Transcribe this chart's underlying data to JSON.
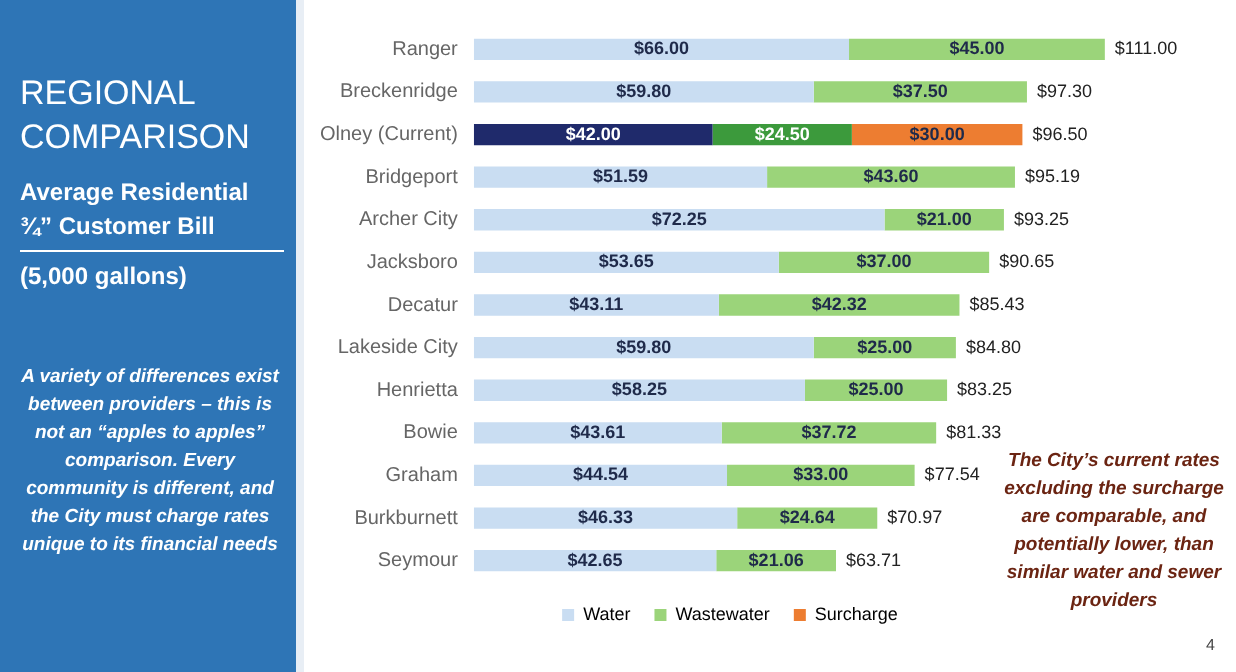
{
  "chart_data": {
    "type": "bar",
    "orientation": "horizontal",
    "stacked": true,
    "title": "REGIONAL COMPARISON",
    "subtitle": "Average Residential ¾” Customer Bill",
    "categories": [
      "Ranger",
      "Breckenridge",
      "Olney (Current)",
      "Bridgeport",
      "Archer City",
      "Jacksboro",
      "Decatur",
      "Lakeside City",
      "Henrietta",
      "Bowie",
      "Graham",
      "Burkburnett",
      "Seymour"
    ],
    "series": [
      {
        "name": "Water",
        "color": "#c9ddf2",
        "colors": [
          "#c9ddf2",
          "#c9ddf2",
          "#1f2a6b",
          "#c9ddf2",
          "#c9ddf2",
          "#c9ddf2",
          "#c9ddf2",
          "#c9ddf2",
          "#c9ddf2",
          "#c9ddf2",
          "#c9ddf2",
          "#c9ddf2",
          "#c9ddf2"
        ],
        "values": [
          66,
          59.8,
          42,
          51.59,
          72.25,
          53.65,
          43.11,
          59.8,
          58.25,
          43.61,
          44.54,
          46.33,
          42.65
        ],
        "value_labels": [
          "$66.00",
          "$59.80",
          "$42.00",
          "$51.59",
          "$72.25",
          "$53.65",
          "$43.11",
          "$59.80",
          "$58.25",
          "$43.61",
          "$44.54",
          "$46.33",
          "$42.65"
        ]
      },
      {
        "name": "Wastewater",
        "color": "#9bd47a",
        "colors": [
          "#9bd47a",
          "#9bd47a",
          "#3c9a3c",
          "#9bd47a",
          "#9bd47a",
          "#9bd47a",
          "#9bd47a",
          "#9bd47a",
          "#9bd47a",
          "#9bd47a",
          "#9bd47a",
          "#9bd47a",
          "#9bd47a"
        ],
        "values": [
          45,
          37.5,
          24.5,
          43.6,
          21,
          37,
          42.32,
          25,
          25,
          37.72,
          33,
          24.64,
          21.06
        ],
        "value_labels": [
          "$45.00",
          "$37.50",
          "$24.50",
          "$43.60",
          "$21.00",
          "$37.00",
          "$42.32",
          "$25.00",
          "$25.00",
          "$37.72",
          "$33.00",
          "$24.64",
          "$21.06"
        ]
      },
      {
        "name": "Surcharge",
        "color": "#ed7d31",
        "values": [
          null,
          null,
          30,
          null,
          null,
          null,
          null,
          null,
          null,
          null,
          null,
          null,
          null
        ],
        "value_labels": [
          null,
          null,
          "$30.00",
          null,
          null,
          null,
          null,
          null,
          null,
          null,
          null,
          null,
          null
        ]
      }
    ],
    "totals": [
      "$111.00",
      "$97.30",
      "$96.50",
      "$95.19",
      "$93.25",
      "$90.65",
      "$85.43",
      "$84.80",
      "$83.25",
      "$81.33",
      "$77.54",
      "$70.97",
      "$63.71"
    ],
    "tick_labels": "y",
    "grid": false,
    "legend": "bottom",
    "annotations": [
      "(5,000 gallons)",
      "A variety of differences exist between providers – this is not an “apples to apples” comparison.  Every community is different, and the City must charge rates unique to its financial needs",
      "The City’s current rates excluding the surcharge are comparable, and potentially lower, than similar water and sewer providers",
      "4"
    ]
  }
}
